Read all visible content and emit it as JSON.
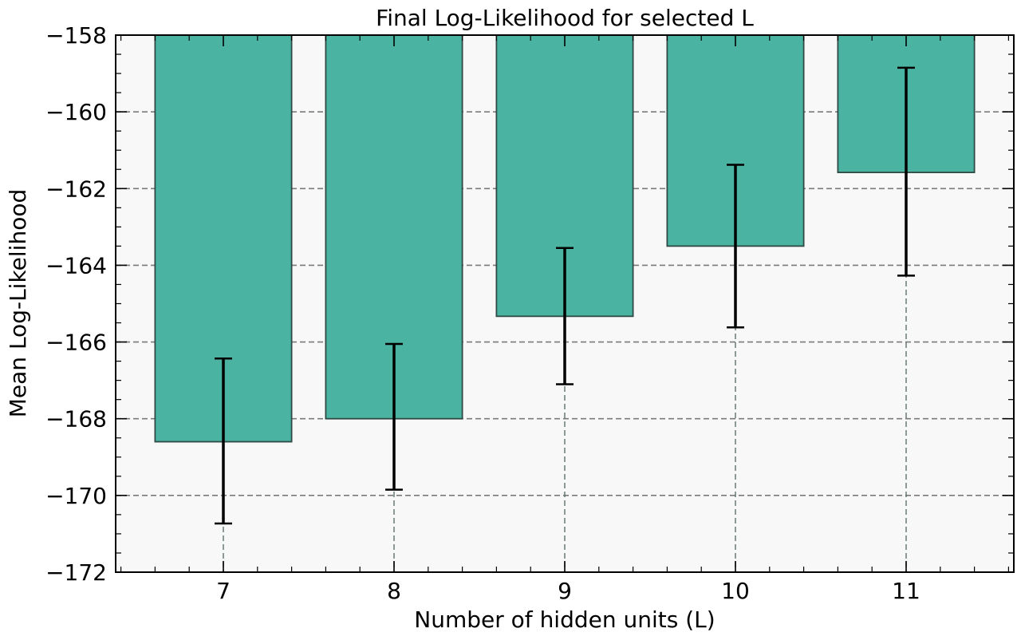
{
  "chart_data": {
    "type": "bar",
    "title": "Final Log-Likelihood for selected L",
    "xlabel": "Number of hidden units (L)",
    "ylabel": "Mean Log-Likelihood",
    "categories": [
      "7",
      "8",
      "9",
      "10",
      "11"
    ],
    "values": [
      -168.6,
      -168.0,
      -165.33,
      -163.5,
      -161.58
    ],
    "error_low": [
      -170.73,
      -169.85,
      -167.1,
      -165.62,
      -164.27
    ],
    "error_high": [
      -166.43,
      -166.05,
      -163.55,
      -161.38,
      -158.85
    ],
    "ylim": [
      -172,
      -158
    ],
    "yticks": [
      -158,
      -160,
      -162,
      -164,
      -166,
      -168,
      -170,
      -172
    ],
    "ytick_labels": [
      "−158",
      "−160",
      "−162",
      "−164",
      "−166",
      "−168",
      "−170",
      "−172"
    ],
    "grid": true,
    "bar_color": "#4ab3a2",
    "bar_edge_color": "#2f4a44",
    "plot_background": "#f8f8f8"
  }
}
